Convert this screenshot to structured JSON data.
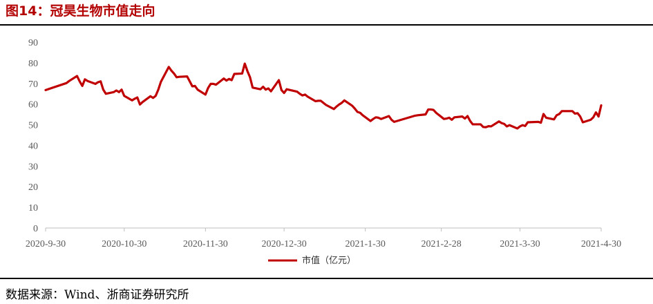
{
  "figure": {
    "title": "图14：冠昊生物市值走向",
    "source": "数据来源：Wind、浙商证券研究所"
  },
  "colors": {
    "series": "#c00000",
    "title": "#b30000",
    "axis": "#bfbfbf",
    "tick_text": "#595959"
  },
  "chart_data": {
    "type": "line",
    "title": "",
    "xlabel": "",
    "ylabel": "",
    "ylim": [
      0,
      90
    ],
    "yticks": [
      0,
      10,
      20,
      30,
      40,
      50,
      60,
      70,
      80,
      90
    ],
    "xlim": [
      "2020-09-30",
      "2021-04-30"
    ],
    "xticks": [
      "2020-9-30",
      "2020-10-30",
      "2020-11-30",
      "2020-12-30",
      "2021-1-30",
      "2021-2-28",
      "2021-3-30",
      "2021-4-30"
    ],
    "grid": false,
    "legend": "bottom-center",
    "series": [
      {
        "name": "市值（亿元）",
        "x": [
          "2020-09-30",
          "2020-10-08",
          "2020-10-09",
          "2020-10-12",
          "2020-10-13",
          "2020-10-14",
          "2020-10-15",
          "2020-10-16",
          "2020-10-19",
          "2020-10-20",
          "2020-10-21",
          "2020-10-22",
          "2020-10-23",
          "2020-10-26",
          "2020-10-27",
          "2020-10-28",
          "2020-10-29",
          "2020-10-30",
          "2020-11-02",
          "2020-11-03",
          "2020-11-04",
          "2020-11-05",
          "2020-11-06",
          "2020-11-09",
          "2020-11-10",
          "2020-11-11",
          "2020-11-12",
          "2020-11-13",
          "2020-11-16",
          "2020-11-17",
          "2020-11-18",
          "2020-11-19",
          "2020-11-20",
          "2020-11-23",
          "2020-11-24",
          "2020-11-25",
          "2020-11-26",
          "2020-11-27",
          "2020-11-30",
          "2020-12-01",
          "2020-12-02",
          "2020-12-03",
          "2020-12-04",
          "2020-12-07",
          "2020-12-08",
          "2020-12-09",
          "2020-12-10",
          "2020-12-11",
          "2020-12-14",
          "2020-12-15",
          "2020-12-16",
          "2020-12-17",
          "2020-12-18",
          "2020-12-21",
          "2020-12-22",
          "2020-12-23",
          "2020-12-24",
          "2020-12-25",
          "2020-12-28",
          "2020-12-29",
          "2020-12-30",
          "2020-12-31",
          "2021-01-04",
          "2021-01-05",
          "2021-01-06",
          "2021-01-07",
          "2021-01-08",
          "2021-01-11",
          "2021-01-12",
          "2021-01-13",
          "2021-01-14",
          "2021-01-15",
          "2021-01-18",
          "2021-01-19",
          "2021-01-20",
          "2021-01-21",
          "2021-01-22",
          "2021-01-25",
          "2021-01-26",
          "2021-01-27",
          "2021-01-28",
          "2021-01-29",
          "2021-02-01",
          "2021-02-02",
          "2021-02-03",
          "2021-02-04",
          "2021-02-05",
          "2021-02-08",
          "2021-02-09",
          "2021-02-10",
          "2021-02-18",
          "2021-02-19",
          "2021-02-22",
          "2021-02-23",
          "2021-02-24",
          "2021-02-25",
          "2021-02-26",
          "2021-03-01",
          "2021-03-02",
          "2021-03-03",
          "2021-03-04",
          "2021-03-05",
          "2021-03-08",
          "2021-03-09",
          "2021-03-10",
          "2021-03-11",
          "2021-03-12",
          "2021-03-15",
          "2021-03-16",
          "2021-03-17",
          "2021-03-18",
          "2021-03-19",
          "2021-03-22",
          "2021-03-23",
          "2021-03-24",
          "2021-03-25",
          "2021-03-26",
          "2021-03-29",
          "2021-03-30",
          "2021-03-31",
          "2021-04-01",
          "2021-04-02",
          "2021-04-06",
          "2021-04-07",
          "2021-04-08",
          "2021-04-09",
          "2021-04-12",
          "2021-04-13",
          "2021-04-14",
          "2021-04-15",
          "2021-04-16",
          "2021-04-19",
          "2021-04-20",
          "2021-04-21",
          "2021-04-22",
          "2021-04-23",
          "2021-04-26",
          "2021-04-27",
          "2021-04-28",
          "2021-04-29",
          "2021-04-30"
        ],
        "y": [
          66.8,
          70.2,
          71.2,
          73.6,
          71.0,
          68.8,
          72.0,
          71.2,
          69.8,
          70.6,
          71.0,
          67.0,
          65.0,
          65.8,
          66.6,
          65.8,
          67.0,
          64.0,
          61.8,
          62.6,
          63.2,
          59.8,
          61.0,
          63.8,
          63.0,
          64.0,
          67.0,
          70.8,
          78.0,
          76.2,
          74.8,
          73.0,
          73.2,
          73.4,
          71.0,
          68.6,
          68.8,
          67.0,
          64.6,
          67.8,
          69.8,
          69.8,
          69.4,
          72.4,
          71.4,
          72.2,
          71.6,
          74.6,
          74.8,
          79.6,
          76.0,
          73.0,
          68.0,
          67.2,
          68.4,
          67.0,
          67.6,
          66.2,
          71.6,
          66.8,
          65.4,
          67.2,
          66.0,
          65.0,
          64.2,
          64.6,
          63.6,
          61.4,
          61.6,
          61.6,
          60.6,
          59.6,
          57.6,
          58.8,
          59.8,
          60.6,
          61.8,
          59.2,
          57.8,
          56.2,
          55.8,
          54.6,
          51.8,
          52.8,
          53.6,
          53.4,
          52.8,
          54.2,
          52.4,
          51.4,
          54.4,
          54.6,
          55.0,
          57.4,
          57.4,
          57.2,
          55.8,
          52.8,
          53.0,
          53.4,
          52.4,
          53.6,
          54.0,
          53.0,
          54.2,
          51.8,
          50.2,
          50.2,
          48.9,
          48.8,
          49.3,
          49.2,
          51.6,
          50.8,
          50.4,
          49.2,
          49.8,
          48.2,
          49.2,
          49.8,
          49.4,
          51.2,
          51.4,
          51.0,
          55.2,
          53.4,
          52.6,
          54.6,
          55.2,
          56.6,
          56.6,
          56.6,
          55.4,
          55.6,
          54.0,
          51.2,
          52.4,
          53.6,
          56.0,
          54.0,
          59.4
        ]
      }
    ]
  }
}
